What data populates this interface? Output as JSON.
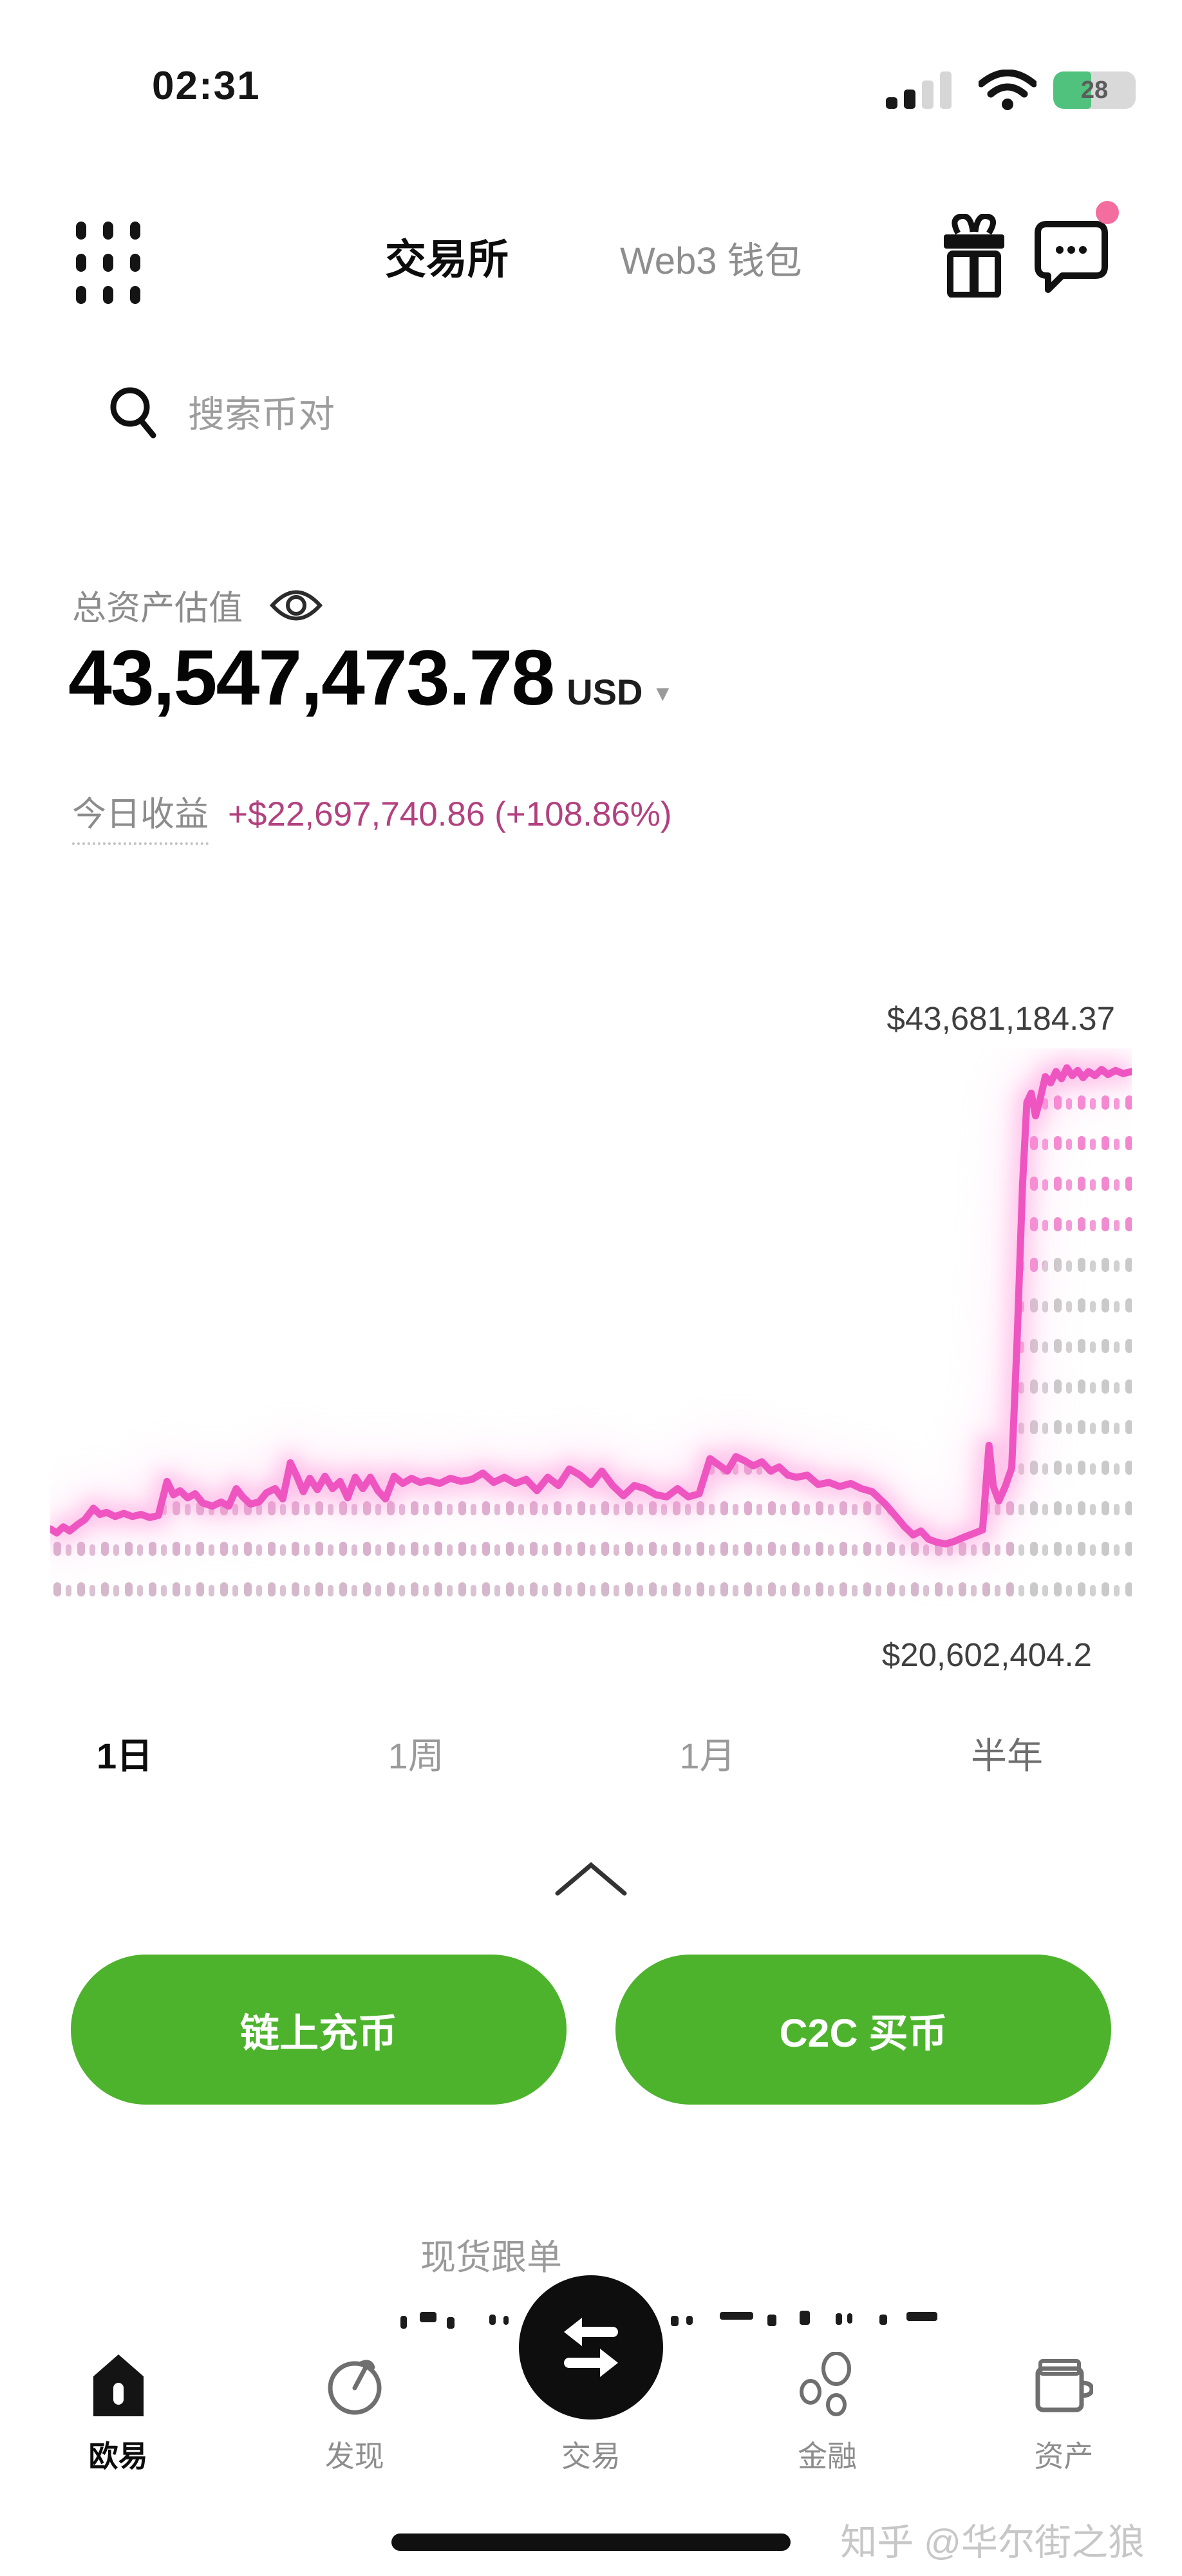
{
  "status_bar": {
    "time": "02:31",
    "battery_percent": "28"
  },
  "header": {
    "tabs": [
      {
        "label": "交易所",
        "active": true
      },
      {
        "label": "Web3 钱包",
        "active": false
      }
    ]
  },
  "search": {
    "placeholder": "搜索币对"
  },
  "portfolio": {
    "label": "总资产估值",
    "value": "43,547,473.78",
    "currency": "USD",
    "caret": "▼",
    "today_label": "今日收益",
    "today_value": "+$22,697,740.86 (+108.86%)"
  },
  "chart_data": {
    "type": "line",
    "currency": "USD",
    "y_max_label": "$43,681,184.37",
    "y_min_label": "$20,602,404.2",
    "ylim_millions": [
      20.602,
      43.681
    ],
    "line_color": "#ee55c1",
    "points": [
      [
        0.0,
        21.35
      ],
      [
        0.006,
        21.15
      ],
      [
        0.012,
        21.45
      ],
      [
        0.018,
        21.25
      ],
      [
        0.025,
        21.55
      ],
      [
        0.032,
        21.8
      ],
      [
        0.04,
        22.35
      ],
      [
        0.046,
        22.05
      ],
      [
        0.052,
        22.15
      ],
      [
        0.06,
        21.95
      ],
      [
        0.068,
        22.1
      ],
      [
        0.076,
        21.95
      ],
      [
        0.084,
        22.05
      ],
      [
        0.092,
        21.9
      ],
      [
        0.1,
        22.0
      ],
      [
        0.108,
        23.65
      ],
      [
        0.114,
        23.0
      ],
      [
        0.12,
        23.2
      ],
      [
        0.127,
        22.85
      ],
      [
        0.134,
        23.05
      ],
      [
        0.141,
        22.6
      ],
      [
        0.15,
        22.45
      ],
      [
        0.158,
        22.65
      ],
      [
        0.165,
        22.45
      ],
      [
        0.172,
        23.3
      ],
      [
        0.178,
        22.9
      ],
      [
        0.185,
        22.55
      ],
      [
        0.193,
        22.65
      ],
      [
        0.2,
        23.1
      ],
      [
        0.208,
        23.3
      ],
      [
        0.215,
        22.8
      ],
      [
        0.222,
        24.55
      ],
      [
        0.228,
        23.9
      ],
      [
        0.234,
        23.15
      ],
      [
        0.24,
        23.8
      ],
      [
        0.247,
        23.25
      ],
      [
        0.254,
        23.9
      ],
      [
        0.261,
        23.3
      ],
      [
        0.268,
        23.65
      ],
      [
        0.275,
        22.85
      ],
      [
        0.282,
        23.85
      ],
      [
        0.289,
        23.3
      ],
      [
        0.296,
        23.85
      ],
      [
        0.303,
        23.2
      ],
      [
        0.31,
        22.8
      ],
      [
        0.318,
        23.9
      ],
      [
        0.326,
        23.55
      ],
      [
        0.334,
        23.8
      ],
      [
        0.342,
        23.6
      ],
      [
        0.35,
        23.7
      ],
      [
        0.36,
        23.55
      ],
      [
        0.37,
        23.8
      ],
      [
        0.38,
        23.65
      ],
      [
        0.39,
        23.75
      ],
      [
        0.4,
        24.05
      ],
      [
        0.41,
        23.6
      ],
      [
        0.42,
        23.85
      ],
      [
        0.43,
        23.55
      ],
      [
        0.44,
        23.75
      ],
      [
        0.45,
        23.2
      ],
      [
        0.46,
        23.85
      ],
      [
        0.47,
        23.45
      ],
      [
        0.48,
        24.25
      ],
      [
        0.49,
        23.95
      ],
      [
        0.5,
        23.5
      ],
      [
        0.51,
        24.15
      ],
      [
        0.52,
        23.45
      ],
      [
        0.53,
        22.95
      ],
      [
        0.54,
        23.45
      ],
      [
        0.55,
        23.3
      ],
      [
        0.56,
        23.0
      ],
      [
        0.57,
        22.9
      ],
      [
        0.58,
        23.3
      ],
      [
        0.59,
        22.9
      ],
      [
        0.6,
        23.05
      ],
      [
        0.61,
        24.75
      ],
      [
        0.618,
        24.45
      ],
      [
        0.626,
        24.15
      ],
      [
        0.634,
        24.85
      ],
      [
        0.642,
        24.65
      ],
      [
        0.65,
        24.4
      ],
      [
        0.658,
        24.6
      ],
      [
        0.666,
        24.15
      ],
      [
        0.674,
        24.35
      ],
      [
        0.682,
        23.95
      ],
      [
        0.69,
        23.85
      ],
      [
        0.7,
        23.95
      ],
      [
        0.71,
        23.5
      ],
      [
        0.72,
        23.6
      ],
      [
        0.73,
        23.4
      ],
      [
        0.74,
        23.55
      ],
      [
        0.75,
        23.3
      ],
      [
        0.76,
        23.15
      ],
      [
        0.772,
        22.55
      ],
      [
        0.782,
        21.95
      ],
      [
        0.79,
        21.45
      ],
      [
        0.798,
        21.05
      ],
      [
        0.805,
        21.25
      ],
      [
        0.812,
        20.85
      ],
      [
        0.82,
        20.7
      ],
      [
        0.828,
        20.62
      ],
      [
        0.836,
        20.75
      ],
      [
        0.845,
        20.95
      ],
      [
        0.855,
        21.15
      ],
      [
        0.862,
        21.3
      ],
      [
        0.868,
        25.4
      ],
      [
        0.872,
        23.4
      ],
      [
        0.877,
        22.7
      ],
      [
        0.883,
        23.4
      ],
      [
        0.889,
        24.3
      ],
      [
        0.894,
        30.5
      ],
      [
        0.899,
        38.0
      ],
      [
        0.903,
        42.0
      ],
      [
        0.907,
        42.45
      ],
      [
        0.911,
        41.35
      ],
      [
        0.915,
        42.1
      ],
      [
        0.92,
        43.25
      ],
      [
        0.925,
        42.95
      ],
      [
        0.93,
        43.5
      ],
      [
        0.935,
        43.15
      ],
      [
        0.94,
        43.68
      ],
      [
        0.945,
        43.3
      ],
      [
        0.95,
        43.55
      ],
      [
        0.955,
        43.2
      ],
      [
        0.96,
        43.5
      ],
      [
        0.966,
        43.3
      ],
      [
        0.972,
        43.6
      ],
      [
        0.978,
        43.35
      ],
      [
        0.985,
        43.55
      ],
      [
        0.992,
        43.4
      ],
      [
        1.0,
        43.5
      ]
    ]
  },
  "periods": [
    {
      "label": "1日",
      "active": true
    },
    {
      "label": "1周",
      "active": false
    },
    {
      "label": "1月",
      "active": false
    },
    {
      "label": "半年",
      "active": false
    }
  ],
  "actions": [
    {
      "label": "链上充币"
    },
    {
      "label": "C2C 买币"
    }
  ],
  "section": {
    "title": "现货跟单"
  },
  "nav": [
    {
      "label": "欧易",
      "active": true
    },
    {
      "label": "发现",
      "active": false
    },
    {
      "label": "交易",
      "active": false
    },
    {
      "label": "金融",
      "active": false
    },
    {
      "label": "资产",
      "active": false
    }
  ],
  "watermark": "知乎 @华尔街之狼",
  "colors": {
    "accent_pink": "#ee55c1",
    "profit_text": "#b2417f",
    "button_green": "#4db32d",
    "notification_pink": "#f36d9f"
  }
}
